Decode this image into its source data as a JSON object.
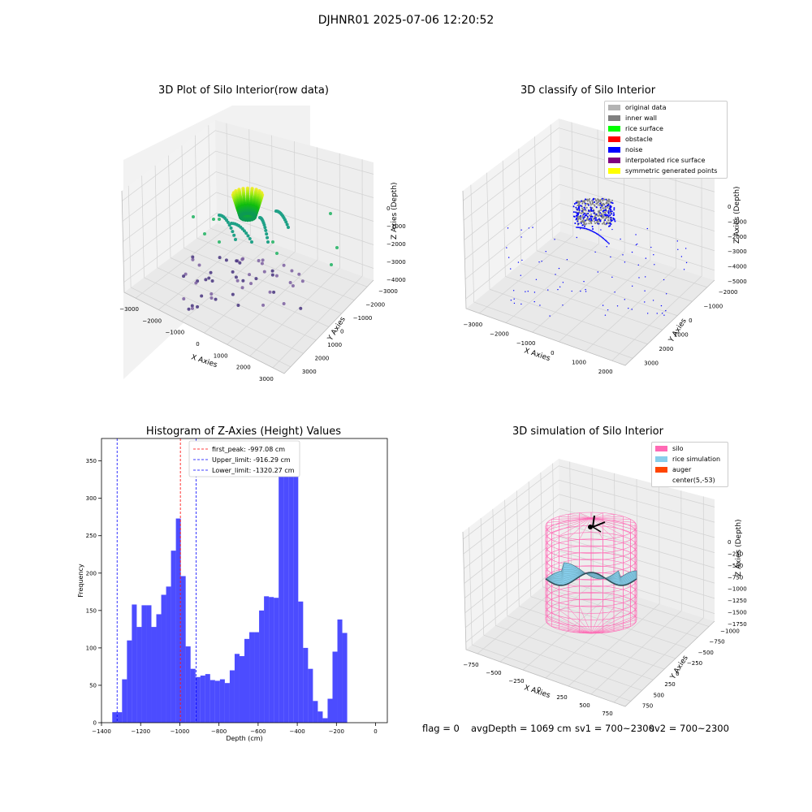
{
  "suptitle": "DJHNR01 2025-07-06 12:20:52",
  "panels": {
    "raw": {
      "title": "3D Plot of Silo Interior(row data)",
      "xlabel": "X Axies",
      "ylabel": "Y Axies",
      "zlabel": "Z Axies (Depth)",
      "xticks": [
        "−3000",
        "−2000",
        "−1000",
        "0",
        "1000",
        "2000",
        "3000"
      ],
      "yticks": [
        "−3000",
        "−2000",
        "−1000",
        "0",
        "1000",
        "2000",
        "3000"
      ],
      "zticks": [
        "0",
        "−1000",
        "−2000",
        "−3000",
        "−4000"
      ]
    },
    "classify": {
      "title": "3D classify of Silo Interior",
      "xlabel": "X Axies",
      "ylabel": "Y Axies",
      "zlabel": "Z Axies (Depth)",
      "xticks": [
        "−3000",
        "−2000",
        "−1000",
        "0",
        "1000",
        "2000"
      ],
      "yticks": [
        "−2000",
        "−1000",
        "0",
        "1000",
        "2000",
        "3000"
      ],
      "zticks": [
        "0",
        "−1000",
        "−2000",
        "−3000",
        "−4000",
        "−5000"
      ],
      "legend": [
        {
          "label": "original data",
          "color": "#b3b3b3"
        },
        {
          "label": "inner wall",
          "color": "#808080"
        },
        {
          "label": "rice surface",
          "color": "#00ff00"
        },
        {
          "label": "obstacle",
          "color": "#ff0000"
        },
        {
          "label": "noise",
          "color": "#0000ff"
        },
        {
          "label": "interpolated rice surface",
          "color": "#800080"
        },
        {
          "label": "symmetric generated points",
          "color": "#ffff00"
        }
      ]
    },
    "simulation": {
      "title": "3D simulation of Silo Interior",
      "xlabel": "X Axies",
      "ylabel": "Y Axies",
      "zlabel": "Z Axies (Depth)",
      "xticks": [
        "−750",
        "−500",
        "−250",
        "0",
        "250",
        "500",
        "750"
      ],
      "yticks": [
        "−1000",
        "−750",
        "−500",
        "−250",
        "0",
        "250",
        "500",
        "750"
      ],
      "zticks": [
        "0",
        "−250",
        "−500",
        "−750",
        "−1000",
        "−1250",
        "−1500",
        "−1750"
      ],
      "legend": [
        {
          "label": "silo",
          "color": "#ff69b4"
        },
        {
          "label": "rice simulation",
          "color": "#87ceeb"
        },
        {
          "label": "auger",
          "color": "#ff4500"
        },
        {
          "label": "center(5,-53)",
          "color": "#ffffff"
        }
      ]
    }
  },
  "chart_data": {
    "type": "bar",
    "title": "Histogram of Z-Axies (Height) Values",
    "xlabel": "Depth (cm)",
    "ylabel": "Frequency",
    "xlim": [
      -1400,
      60
    ],
    "ylim": [
      0,
      380
    ],
    "xticks": [
      -1400,
      -1200,
      -1000,
      -800,
      -600,
      -400,
      -200,
      0
    ],
    "yticks": [
      0,
      50,
      100,
      150,
      200,
      250,
      300,
      350
    ],
    "bin_start": -1345,
    "bin_width": 25,
    "values": [
      14,
      14,
      58,
      110,
      158,
      128,
      157,
      157,
      128,
      145,
      171,
      182,
      230,
      273,
      196,
      102,
      72,
      61,
      63,
      65,
      57,
      56,
      58,
      53,
      70,
      92,
      89,
      112,
      121,
      121,
      150,
      169,
      168,
      167,
      345,
      350,
      361,
      350,
      162,
      100,
      72,
      29,
      15,
      6,
      32,
      95,
      138,
      120
    ],
    "bar_color": "#0000ff",
    "lines": [
      {
        "label": "first_peak: -997.08 cm",
        "x": -997.08,
        "color": "#ff0000"
      },
      {
        "label": "Upper_limit: -916.29 cm",
        "x": -916.29,
        "color": "#0000ff"
      },
      {
        "label": "Lower_limit: -1320.27 cm",
        "x": -1320.27,
        "color": "#0000ff"
      }
    ],
    "legend_position": "top-center"
  },
  "footer": {
    "flag": "flag = 0",
    "avg": "avgDepth = 1069 cm",
    "sv1": "sv1 = 700~2300",
    "sv2": "sv2 = 700~2300"
  }
}
